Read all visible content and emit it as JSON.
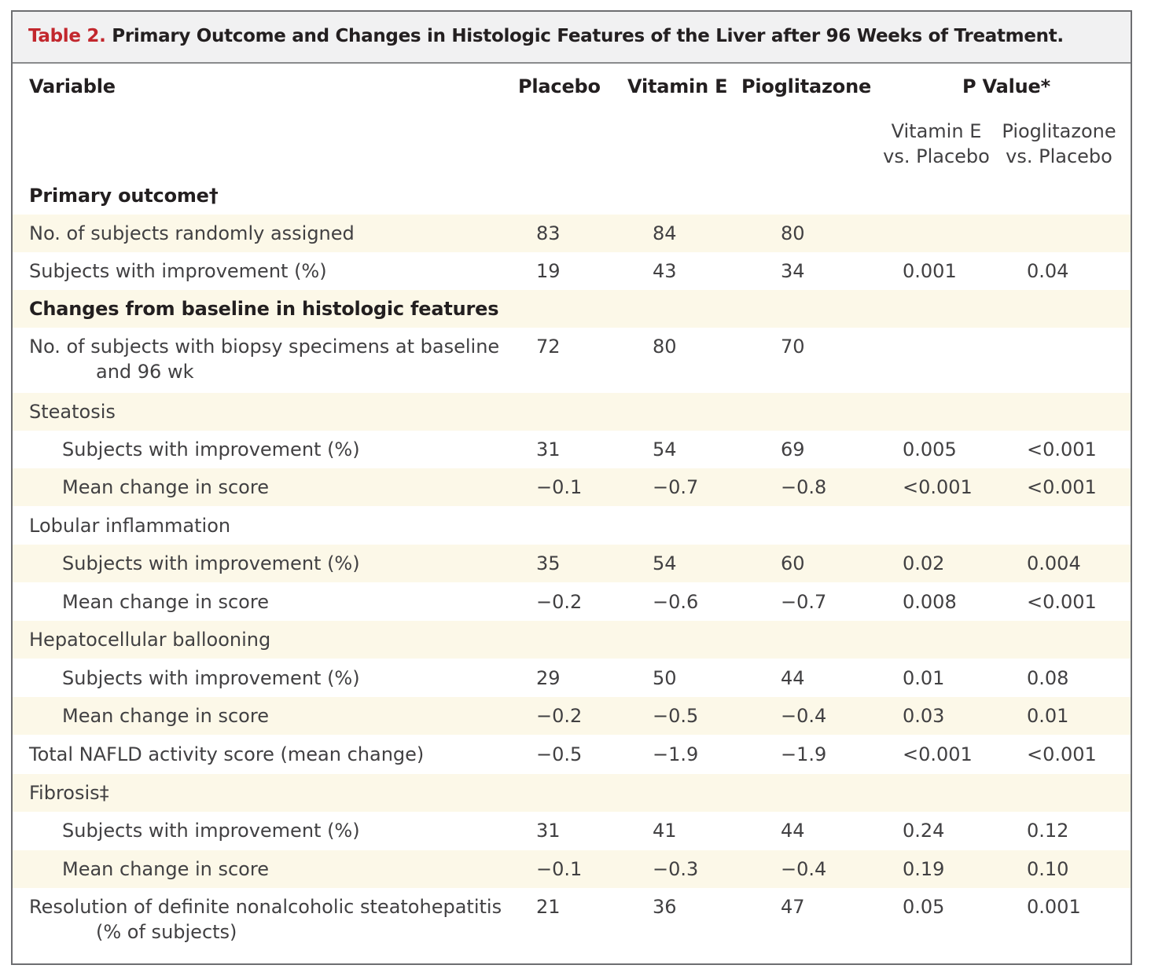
{
  "table": {
    "title_label": "Table 2.",
    "title_text": "Primary Outcome and Changes in Histologic Features of the Liver after 96 Weeks of Treatment.",
    "columns": {
      "variable": "Variable",
      "placebo": "Placebo",
      "vitamin_e": "Vitamin E",
      "pioglitazone": "Pioglitazone",
      "p_value": "P Value*",
      "pv_vite_line1": "Vitamin E",
      "pv_vite_line2": "vs. Placebo",
      "pv_piog_line1": "Pioglitazone",
      "pv_piog_line2": "vs. Placebo"
    },
    "rows": [
      {
        "label": "Primary outcome†",
        "placebo": "",
        "vitamin_e": "",
        "pioglitazone": "",
        "pv_vite": "",
        "pv_piog": ""
      },
      {
        "label": "No. of subjects randomly assigned",
        "placebo": "83",
        "vitamin_e": "84",
        "pioglitazone": "80",
        "pv_vite": "",
        "pv_piog": ""
      },
      {
        "label": "Subjects with improvement (%)",
        "placebo": "19",
        "vitamin_e": "43",
        "pioglitazone": "34",
        "pv_vite": "0.001",
        "pv_piog": "0.04"
      },
      {
        "label": "Changes from baseline in histologic features",
        "placebo": "",
        "vitamin_e": "",
        "pioglitazone": "",
        "pv_vite": "",
        "pv_piog": ""
      },
      {
        "label": "No. of subjects with biopsy specimens at baseline",
        "label_line2": "and 96 wk",
        "placebo": "72",
        "vitamin_e": "80",
        "pioglitazone": "70",
        "pv_vite": "",
        "pv_piog": ""
      },
      {
        "label": "Steatosis",
        "placebo": "",
        "vitamin_e": "",
        "pioglitazone": "",
        "pv_vite": "",
        "pv_piog": ""
      },
      {
        "label": "Subjects with improvement (%)",
        "placebo": "31",
        "vitamin_e": "54",
        "pioglitazone": "69",
        "pv_vite": "0.005",
        "pv_piog": "<0.001"
      },
      {
        "label": "Mean change in score",
        "placebo": "−0.1",
        "vitamin_e": "−0.7",
        "pioglitazone": "−0.8",
        "pv_vite": "<0.001",
        "pv_piog": "<0.001"
      },
      {
        "label": "Lobular inflammation",
        "placebo": "",
        "vitamin_e": "",
        "pioglitazone": "",
        "pv_vite": "",
        "pv_piog": ""
      },
      {
        "label": "Subjects with improvement (%)",
        "placebo": "35",
        "vitamin_e": "54",
        "pioglitazone": "60",
        "pv_vite": "0.02",
        "pv_piog": "0.004"
      },
      {
        "label": "Mean change in score",
        "placebo": "−0.2",
        "vitamin_e": "−0.6",
        "pioglitazone": "−0.7",
        "pv_vite": "0.008",
        "pv_piog": "<0.001"
      },
      {
        "label": "Hepatocellular ballooning",
        "placebo": "",
        "vitamin_e": "",
        "pioglitazone": "",
        "pv_vite": "",
        "pv_piog": ""
      },
      {
        "label": "Subjects with improvement (%)",
        "placebo": "29",
        "vitamin_e": "50",
        "pioglitazone": "44",
        "pv_vite": "0.01",
        "pv_piog": "0.08"
      },
      {
        "label": "Mean change in score",
        "placebo": "−0.2",
        "vitamin_e": "−0.5",
        "pioglitazone": "−0.4",
        "pv_vite": "0.03",
        "pv_piog": "0.01"
      },
      {
        "label": "Total NAFLD activity score (mean change)",
        "placebo": "−0.5",
        "vitamin_e": "−1.9",
        "pioglitazone": "−1.9",
        "pv_vite": "<0.001",
        "pv_piog": "<0.001"
      },
      {
        "label": "Fibrosis‡",
        "placebo": "",
        "vitamin_e": "",
        "pioglitazone": "",
        "pv_vite": "",
        "pv_piog": ""
      },
      {
        "label": "Subjects with improvement (%)",
        "placebo": "31",
        "vitamin_e": "41",
        "pioglitazone": "44",
        "pv_vite": "0.24",
        "pv_piog": "0.12"
      },
      {
        "label": "Mean change in score",
        "placebo": "−0.1",
        "vitamin_e": "−0.3",
        "pioglitazone": "−0.4",
        "pv_vite": "0.19",
        "pv_piog": "0.10"
      },
      {
        "label": "Resolution of definite nonalcoholic steatohepatitis",
        "label_line2": "(% of subjects)",
        "placebo": "21",
        "vitamin_e": "36",
        "pioglitazone": "47",
        "pv_vite": "0.05",
        "pv_piog": "0.001"
      }
    ]
  }
}
